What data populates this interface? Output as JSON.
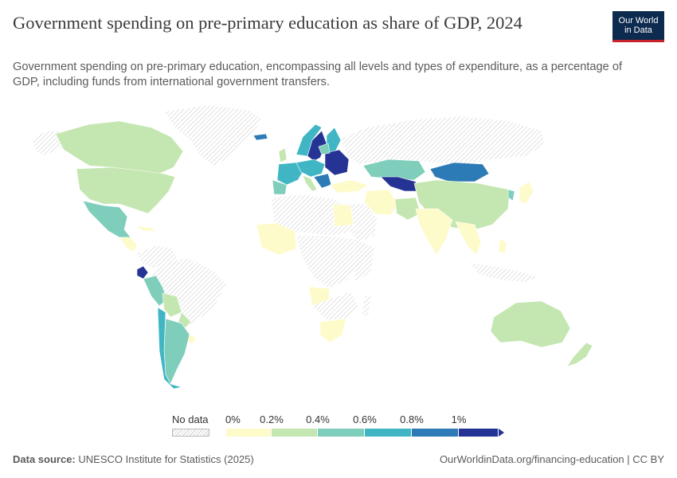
{
  "header": {
    "title": "Government spending on pre-primary education as share of GDP, 2024",
    "subtitle": "Government spending on pre-primary education, encompassing all levels and types of expenditure, as a percentage of GDP, including funds from international government transfers."
  },
  "logo": {
    "line1": "Our World",
    "line2": "in Data"
  },
  "legend": {
    "no_data_label": "No data",
    "ticks": [
      "0%",
      "0.2%",
      "0.4%",
      "0.6%",
      "0.8%",
      "1%"
    ],
    "bin_colors": [
      "#fdfbc9",
      "#c4e6b0",
      "#7fcdbb",
      "#40b6c4",
      "#2c7bb6",
      "#253494"
    ]
  },
  "footer": {
    "source_label": "Data source:",
    "source_text": "UNESCO Institute for Statistics (2025)",
    "url": "OurWorldinData.org/financing-education | CC BY"
  },
  "map_data": {
    "colors": {
      "no_data": "#f2f2f2",
      "bin_0_02": "#fdfbc9",
      "bin_02_04": "#c4e6b0",
      "bin_04_06": "#7fcdbb",
      "bin_06_08": "#40b6c4",
      "bin_08_1": "#2c7bb6",
      "bin_1_plus": "#253494"
    }
  }
}
